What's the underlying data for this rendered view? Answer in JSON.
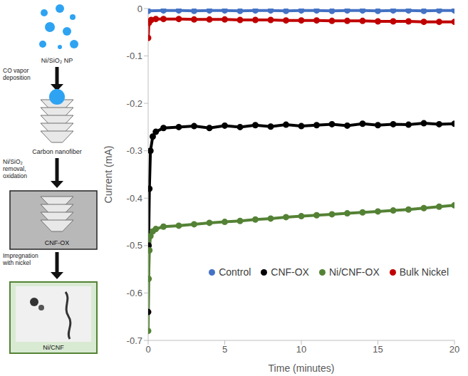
{
  "chart_data": {
    "type": "line",
    "xlabel": "Time (minutes)",
    "ylabel": "Current (mA)",
    "xlim": [
      0,
      20
    ],
    "xticks": [
      0,
      5,
      10,
      15,
      20
    ],
    "ylim": [
      -0.7,
      0
    ],
    "yticks": [
      -0.7,
      -0.6,
      -0.5,
      -0.4,
      -0.3,
      -0.2,
      -0.1,
      0
    ],
    "grid": false,
    "legend": "bottom right",
    "marker": "circle",
    "line_style": "solid",
    "series": [
      {
        "name": "Control",
        "color": "#4472c4",
        "x": [
          0,
          1,
          2,
          3,
          4,
          5,
          6,
          7,
          8,
          9,
          10,
          11,
          12,
          13,
          14,
          15,
          16,
          17,
          18,
          19,
          20
        ],
        "values": [
          -0.005,
          -0.004,
          -0.004,
          -0.005,
          -0.004,
          -0.004,
          -0.005,
          -0.004,
          -0.004,
          -0.005,
          -0.004,
          -0.004,
          -0.005,
          -0.004,
          -0.004,
          -0.005,
          -0.004,
          -0.004,
          -0.005,
          -0.004,
          -0.004
        ]
      },
      {
        "name": "CNF-OX",
        "color": "#000000",
        "x": [
          0,
          0.03,
          0.08,
          0.15,
          0.3,
          0.5,
          1,
          2,
          3,
          4,
          5,
          6,
          7,
          8,
          9,
          10,
          11,
          12,
          13,
          14,
          15,
          16,
          17,
          18,
          19,
          20
        ],
        "values": [
          -0.64,
          -0.5,
          -0.38,
          -0.3,
          -0.27,
          -0.26,
          -0.252,
          -0.25,
          -0.248,
          -0.252,
          -0.247,
          -0.25,
          -0.246,
          -0.249,
          -0.245,
          -0.248,
          -0.246,
          -0.244,
          -0.247,
          -0.243,
          -0.246,
          -0.244,
          -0.245,
          -0.242,
          -0.244,
          -0.243
        ]
      },
      {
        "name": "Ni/CNF-OX",
        "color": "#548235",
        "x": [
          0,
          0.03,
          0.08,
          0.15,
          0.3,
          0.5,
          1,
          2,
          3,
          4,
          5,
          6,
          7,
          8,
          9,
          10,
          11,
          12,
          13,
          14,
          15,
          16,
          17,
          18,
          19,
          20
        ],
        "values": [
          -0.68,
          -0.57,
          -0.51,
          -0.48,
          -0.47,
          -0.465,
          -0.46,
          -0.458,
          -0.455,
          -0.452,
          -0.45,
          -0.448,
          -0.445,
          -0.443,
          -0.44,
          -0.438,
          -0.436,
          -0.434,
          -0.432,
          -0.43,
          -0.428,
          -0.426,
          -0.424,
          -0.421,
          -0.418,
          -0.415
        ]
      },
      {
        "name": "Bulk Nickel",
        "color": "#c00000",
        "x": [
          0,
          0.05,
          0.2,
          0.5,
          1,
          2,
          3,
          4,
          5,
          6,
          7,
          8,
          9,
          10,
          11,
          12,
          13,
          14,
          15,
          16,
          17,
          18,
          19,
          20
        ],
        "values": [
          -0.062,
          -0.03,
          -0.024,
          -0.022,
          -0.022,
          -0.022,
          -0.023,
          -0.023,
          -0.023,
          -0.024,
          -0.024,
          -0.024,
          -0.025,
          -0.025,
          -0.025,
          -0.026,
          -0.026,
          -0.026,
          -0.027,
          -0.027,
          -0.027,
          -0.028,
          -0.028,
          -0.028
        ]
      }
    ]
  },
  "diagram": {
    "stages": [
      "Ni/SiO₂ NP",
      "Carbon nanofiber",
      "CNF-OX",
      "Ni/CNF"
    ],
    "steps": [
      "CO vapor deposition",
      "Ni/SiO₂ removal, oxidation",
      "Impregnation with nickel"
    ]
  }
}
